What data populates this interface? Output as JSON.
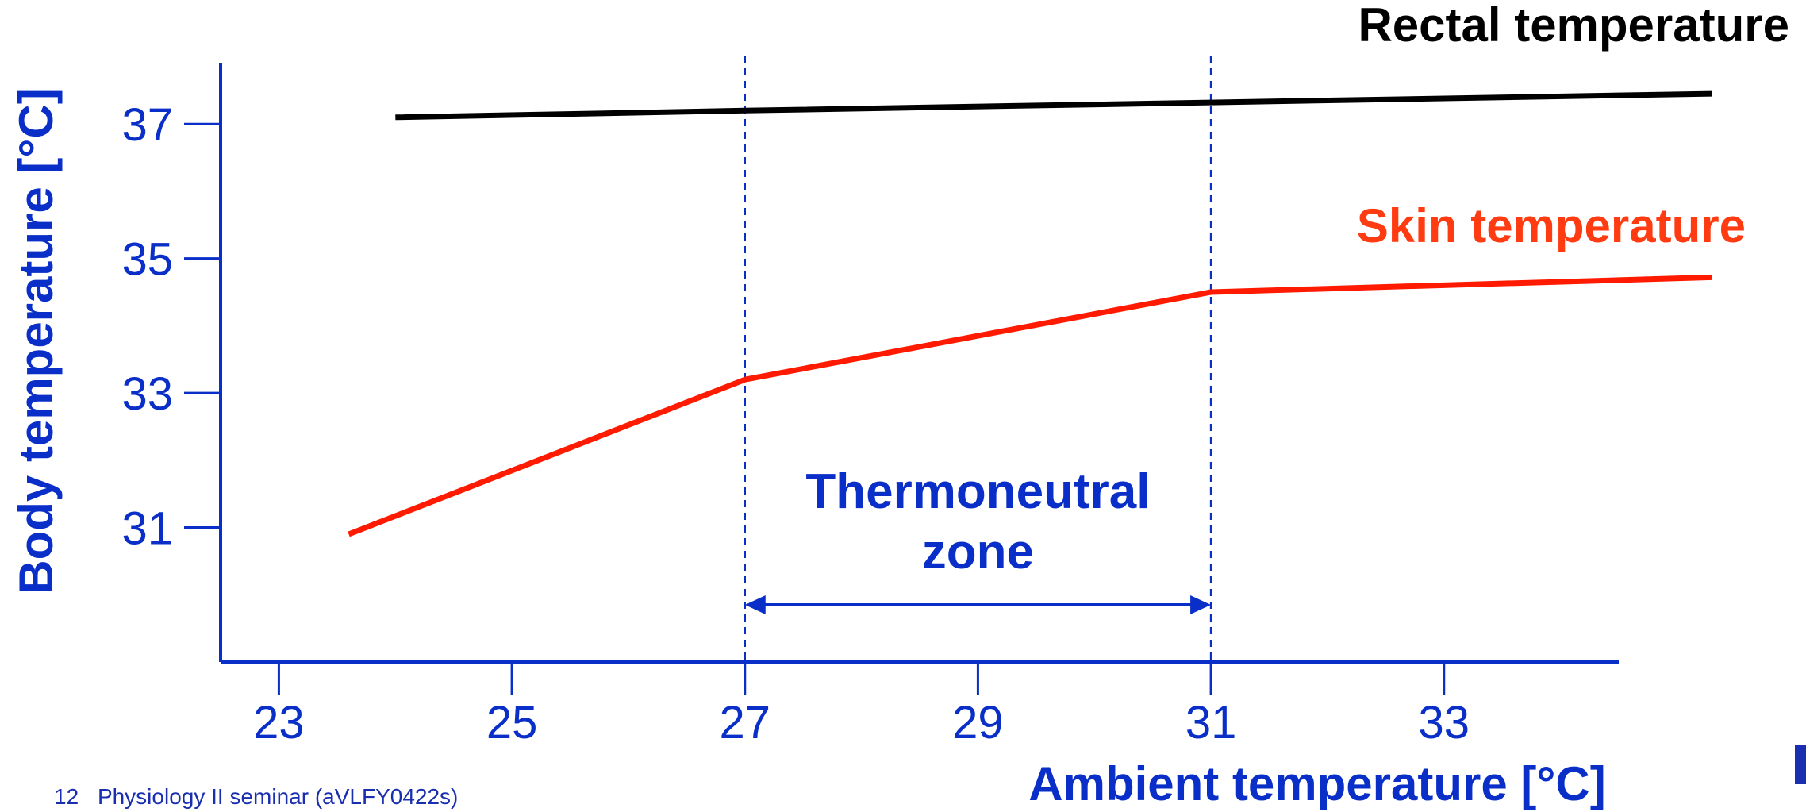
{
  "colors": {
    "axis": "#0a2fc8",
    "rectal": "#000000",
    "skin": "#ff1a00",
    "skin_label": "#ff3b12"
  },
  "chart_data": {
    "type": "line",
    "xlabel": "Ambient temperature [°C]",
    "ylabel": "Body temperature [°C]",
    "xlim": [
      22.5,
      34.5
    ],
    "ylim": [
      29.0,
      37.9
    ],
    "x_ticks": [
      23,
      25,
      27,
      29,
      31,
      33
    ],
    "y_ticks": [
      31,
      33,
      35,
      37
    ],
    "grid": false,
    "series": [
      {
        "name": "Rectal temperature",
        "color": "#000000",
        "x": [
          24.0,
          27.0,
          31.0,
          35.3
        ],
        "y": [
          37.1,
          37.2,
          37.32,
          37.45
        ]
      },
      {
        "name": "Skin temperature",
        "color": "#ff1a00",
        "x": [
          23.6,
          27.0,
          31.0,
          35.3
        ],
        "y": [
          30.9,
          33.2,
          34.5,
          34.72
        ]
      }
    ],
    "reference_lines_x": [
      27,
      31
    ],
    "annotation": {
      "text_line1": "Thermoneutral",
      "text_line2": "zone",
      "from_x": 27,
      "to_x": 31,
      "arrow_y": 30.3
    }
  },
  "footer": {
    "page_number": "12",
    "text": "Physiology II seminar (aVLFY0422s)"
  }
}
